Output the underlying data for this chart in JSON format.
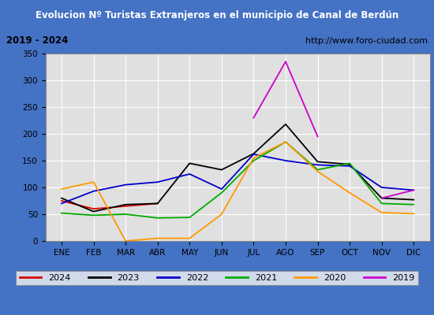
{
  "title": "Evolucion Nº Turistas Extranjeros en el municipio de Canal de Berdún",
  "subtitle_left": "2019 - 2024",
  "subtitle_right": "http://www.foro-ciudad.com",
  "months": [
    "ENE",
    "FEB",
    "MAR",
    "ABR",
    "MAY",
    "JUN",
    "JUL",
    "AGO",
    "SEP",
    "OCT",
    "NOV",
    "DIC"
  ],
  "series": {
    "2024": {
      "color": "#dd0000",
      "data": [
        75,
        60,
        65,
        70,
        null,
        null,
        null,
        null,
        null,
        null,
        null,
        null
      ]
    },
    "2023": {
      "color": "#000000",
      "data": [
        80,
        55,
        68,
        70,
        145,
        133,
        163,
        218,
        148,
        143,
        80,
        77
      ]
    },
    "2022": {
      "color": "#0000cc",
      "data": [
        70,
        93,
        105,
        110,
        125,
        97,
        162,
        150,
        142,
        140,
        100,
        95
      ]
    },
    "2021": {
      "color": "#00aa00",
      "data": [
        52,
        48,
        50,
        43,
        44,
        90,
        150,
        185,
        133,
        145,
        70,
        68
      ]
    },
    "2020": {
      "color": "#ff9900",
      "data": [
        97,
        110,
        0,
        5,
        5,
        50,
        155,
        185,
        130,
        90,
        53,
        51
      ]
    },
    "2019": {
      "color": "#cc00cc",
      "data": [
        null,
        null,
        null,
        null,
        null,
        null,
        230,
        335,
        195,
        null,
        80,
        95
      ]
    }
  },
  "ylim": [
    0,
    350
  ],
  "yticks": [
    0,
    50,
    100,
    150,
    200,
    250,
    300,
    350
  ],
  "title_bg": "#4472c4",
  "title_color": "#ffffff",
  "subtitle_bg": "#f0f0f0",
  "plot_bg": "#e0e0e0",
  "grid_color": "#ffffff",
  "border_color": "#4472c4",
  "fig_bg": "#ccccdd"
}
